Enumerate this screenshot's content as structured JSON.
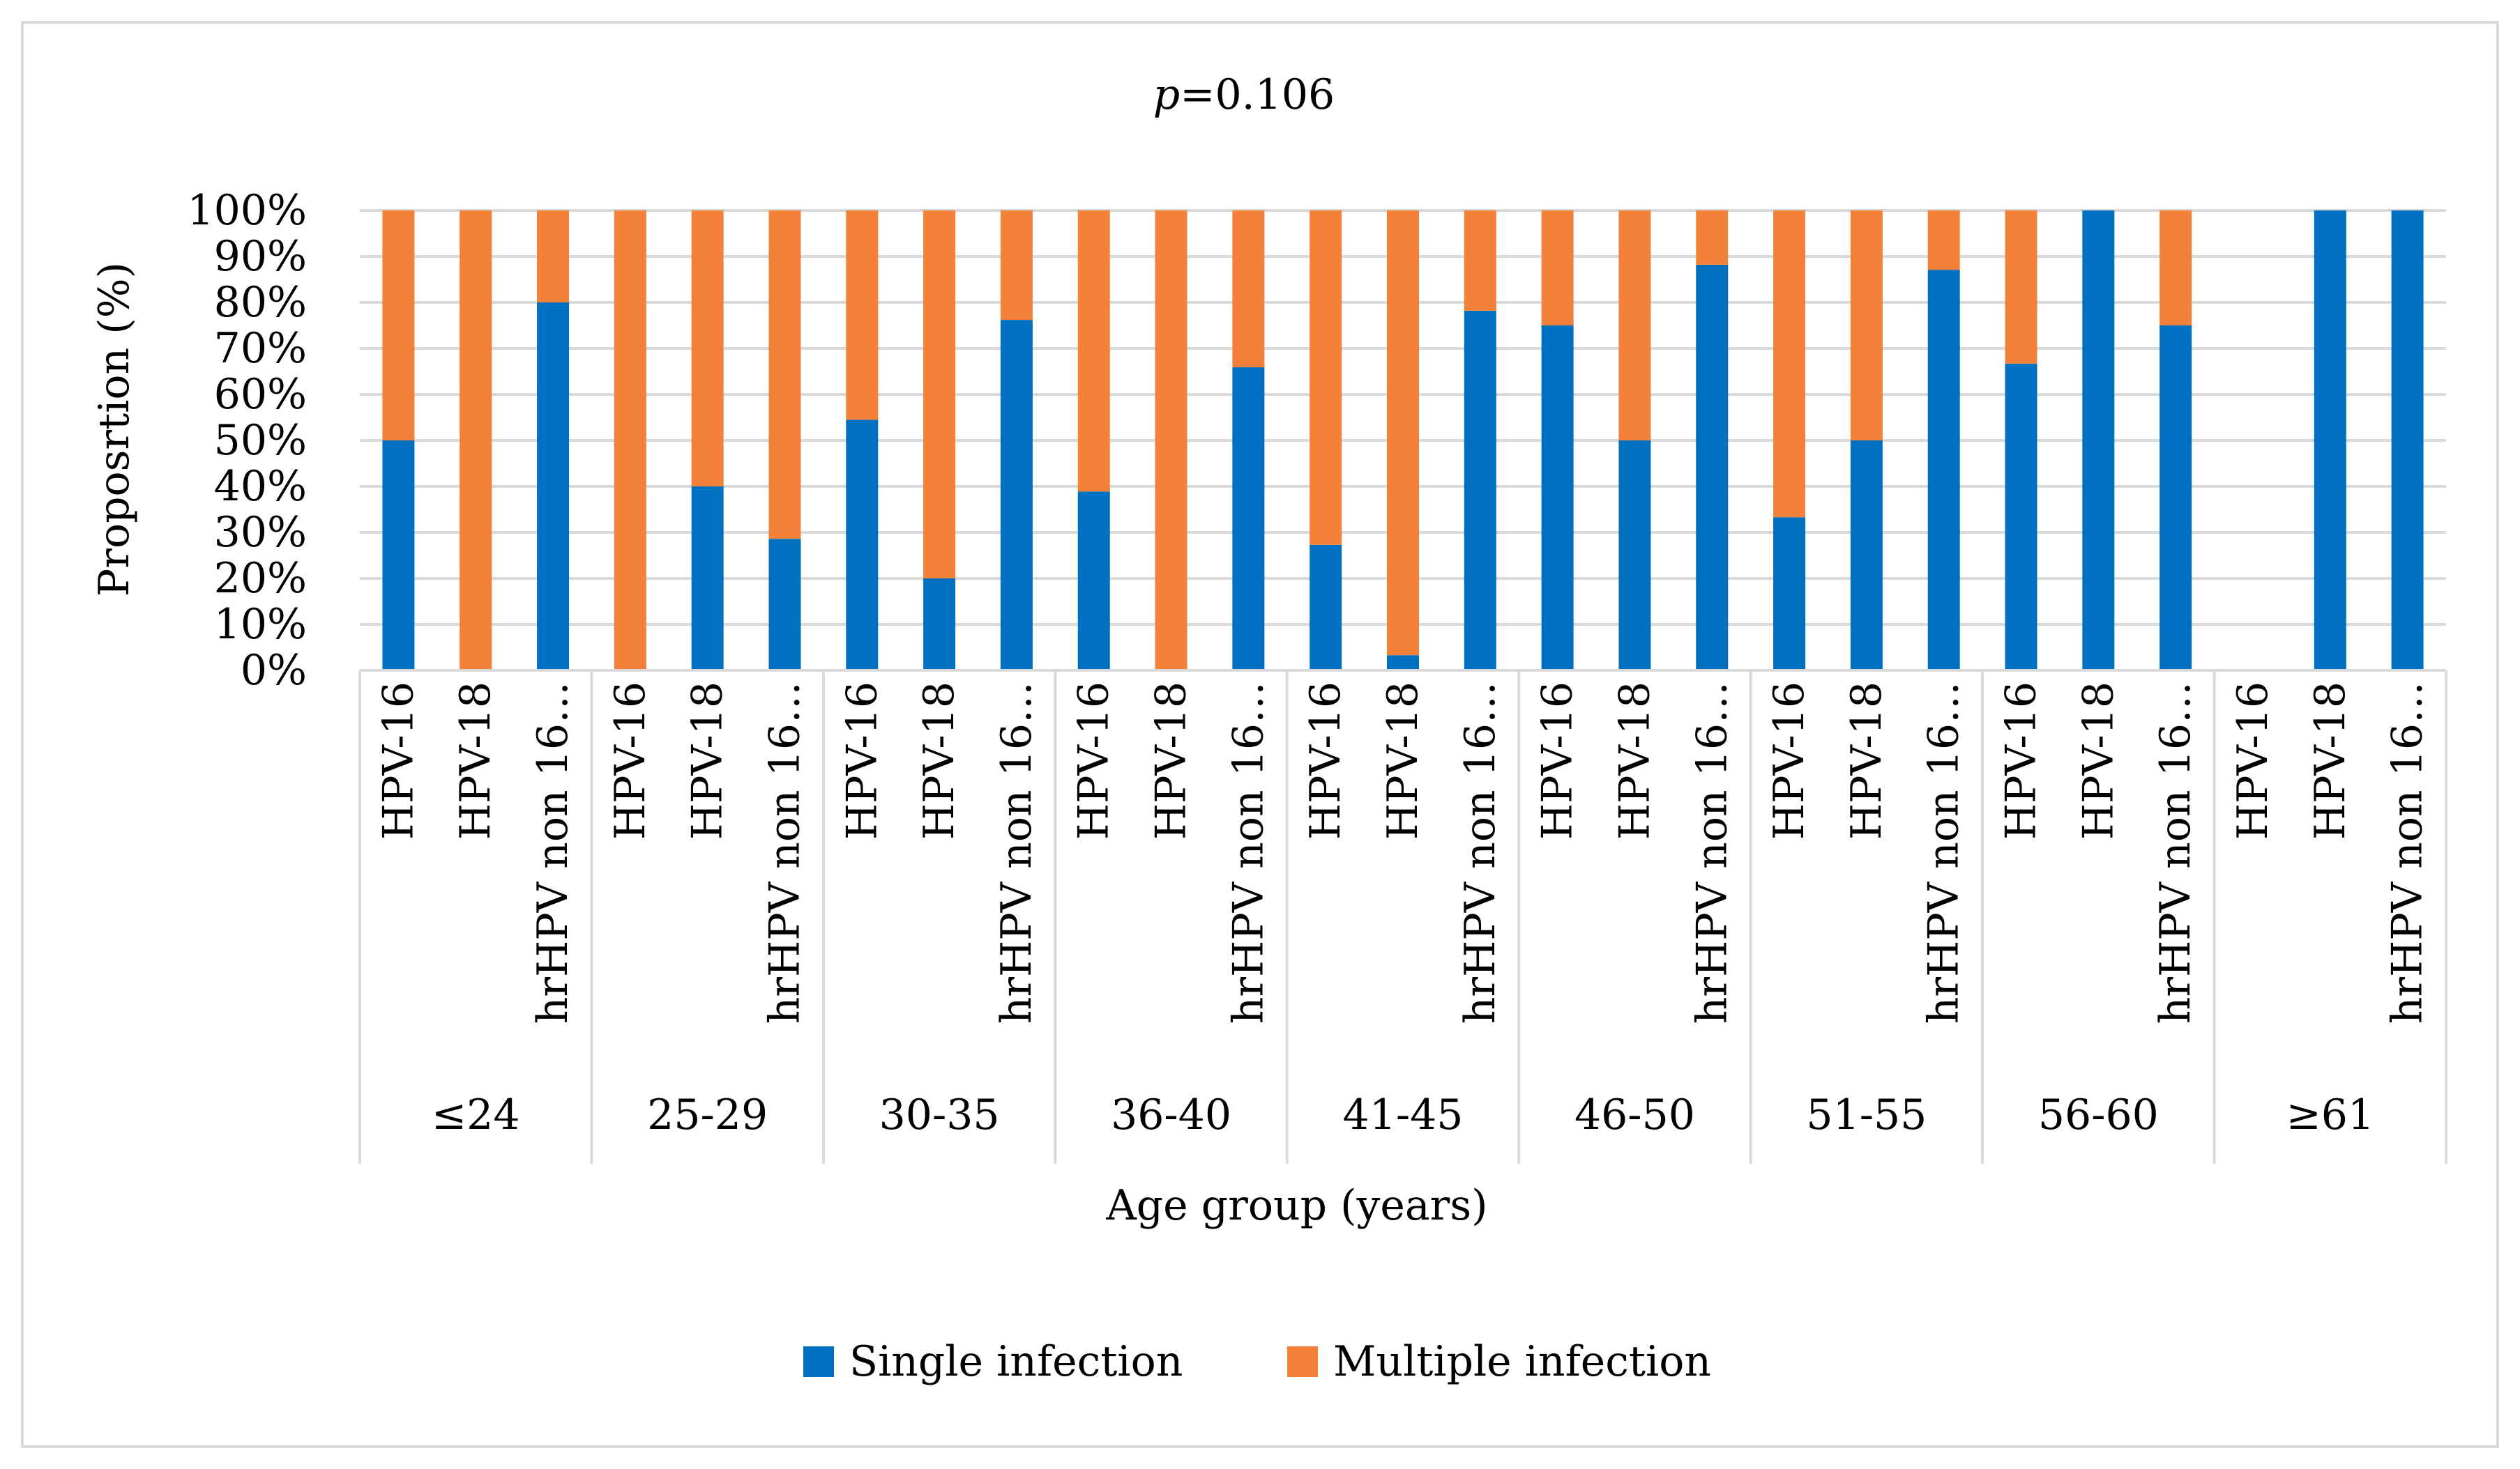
{
  "chart_data": {
    "type": "bar",
    "stacked": true,
    "normalized_percent": true,
    "title": "p=0.106",
    "title_italic_part": "p",
    "title_rest": "=0.106",
    "xlabel": "Age group (years)",
    "ylabel": "Proposrtion (%)",
    "ylim": [
      0,
      100
    ],
    "yticks": [
      "0%",
      "10%",
      "20%",
      "30%",
      "40%",
      "50%",
      "60%",
      "70%",
      "80%",
      "90%",
      "100%"
    ],
    "grid": true,
    "legend_position": "bottom-center",
    "groups": [
      "≤24",
      "25-29",
      "30-35",
      "36-40",
      "41-45",
      "46-50",
      "51-55",
      "56-60",
      "≥61"
    ],
    "subcategories": [
      "HPV-16",
      "HPV-18",
      "hrHPV non 16…"
    ],
    "series": [
      {
        "name": "Single infection",
        "color": "#0070C0",
        "values": [
          50,
          0,
          80,
          0,
          40,
          28.6,
          54.5,
          20,
          76.2,
          38.9,
          0,
          65.9,
          27.3,
          3.3,
          78.2,
          75,
          50,
          88.2,
          33.3,
          50,
          87.1,
          66.7,
          100,
          75,
          0,
          100,
          100
        ]
      },
      {
        "name": "Multiple infection",
        "color": "#F4813A",
        "values": [
          50,
          100,
          20,
          100,
          60,
          71.4,
          45.5,
          80,
          23.8,
          61.1,
          100,
          34.1,
          72.7,
          96.7,
          21.8,
          25,
          50,
          11.8,
          66.7,
          50,
          12.9,
          33.3,
          0,
          25,
          0,
          0,
          0
        ]
      }
    ]
  }
}
